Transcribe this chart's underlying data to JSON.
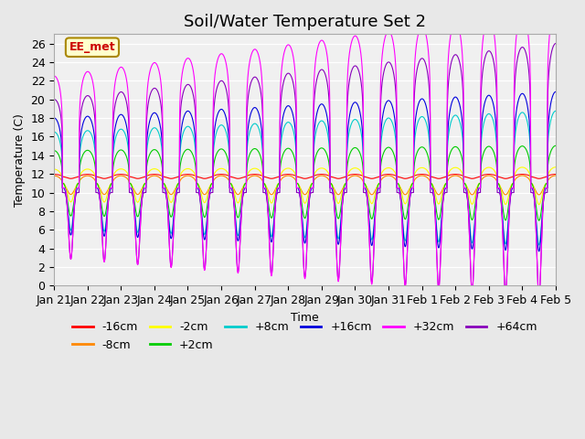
{
  "title": "Soil/Water Temperature Set 2",
  "xlabel": "Time",
  "ylabel": "Temperature (C)",
  "ylim": [
    0,
    27
  ],
  "yticks": [
    0,
    2,
    4,
    6,
    8,
    10,
    12,
    14,
    16,
    18,
    20,
    22,
    24,
    26
  ],
  "x_labels": [
    "Jan 21",
    "Jan 22",
    "Jan 23",
    "Jan 24",
    "Jan 25",
    "Jan 26",
    "Jan 27",
    "Jan 28",
    "Jan 29",
    "Jan 30",
    "Jan 31",
    "Feb 1",
    "Feb 2",
    "Feb 3",
    "Feb 4",
    "Feb 5"
  ],
  "series": [
    {
      "label": "-16cm",
      "color": "#ff0000",
      "base": 11.7,
      "amp": 0.25,
      "trough": 0.2
    },
    {
      "label": "-8cm",
      "color": "#ff8800",
      "base": 11.0,
      "amp": 0.8,
      "trough": 1.2
    },
    {
      "label": "-2cm",
      "color": "#ffff00",
      "base": 11.0,
      "amp": 1.5,
      "trough": 2.0
    },
    {
      "label": "+2cm",
      "color": "#00cc00",
      "base": 11.0,
      "amp": 3.5,
      "trough": 3.5
    },
    {
      "label": "+8cm",
      "color": "#00cccc",
      "base": 10.5,
      "amp": 6.0,
      "trough": 4.5
    },
    {
      "label": "+16cm",
      "color": "#0000dd",
      "base": 10.5,
      "amp": 7.5,
      "trough": 5.0
    },
    {
      "label": "+32cm",
      "color": "#ff00ff",
      "base": 10.5,
      "amp": 12.0,
      "trough": 7.5
    },
    {
      "label": "+64cm",
      "color": "#8800bb",
      "base": 10.0,
      "amp": 10.0,
      "trough": 7.0
    }
  ],
  "ee_met_label": "EE_met",
  "ee_met_color": "#cc0000",
  "ee_met_bg": "#ffffcc",
  "background_color": "#e8e8e8",
  "plot_bg": "#f0f0f0",
  "title_fontsize": 13,
  "axis_fontsize": 9,
  "tick_fontsize": 9,
  "legend_fontsize": 9,
  "n_points": 4800
}
